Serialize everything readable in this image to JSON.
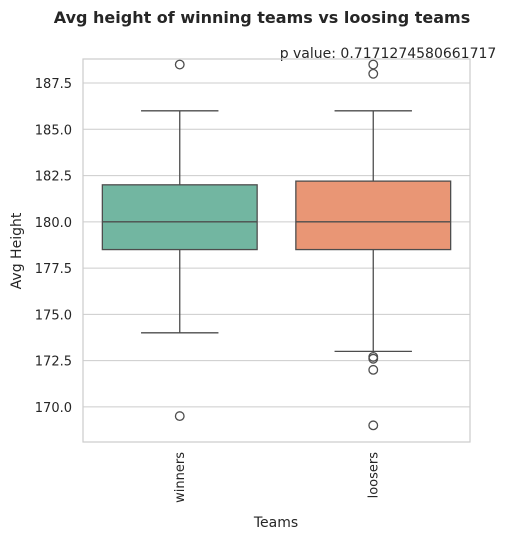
{
  "chart_data": {
    "type": "box",
    "title": "Avg height of winning teams vs loosing teams",
    "annotation": "p value: 0.7171274580661717",
    "xlabel": "Teams",
    "ylabel": "Avg Height",
    "ylim": [
      168.1,
      188.8
    ],
    "yticks": [
      {
        "value": 170.0,
        "label": "170.0"
      },
      {
        "value": 172.5,
        "label": "172.5"
      },
      {
        "value": 175.0,
        "label": "175.0"
      },
      {
        "value": 177.5,
        "label": "177.5"
      },
      {
        "value": 180.0,
        "label": "180.0"
      },
      {
        "value": 182.5,
        "label": "182.5"
      },
      {
        "value": 185.0,
        "label": "185.0"
      },
      {
        "value": 187.5,
        "label": "187.5"
      }
    ],
    "grid": true,
    "categories": [
      "winners",
      "loosers"
    ],
    "boxes": [
      {
        "category": "winners",
        "q1": 178.5,
        "median": 180.0,
        "q3": 182.0,
        "whisker_low": 174.0,
        "whisker_high": 186.0,
        "outliers": [
          188.5,
          169.5
        ],
        "color": "#72b6a1"
      },
      {
        "category": "loosers",
        "q1": 178.5,
        "median": 180.0,
        "q3": 182.2,
        "whisker_low": 173.0,
        "whisker_high": 186.0,
        "outliers": [
          188.5,
          188.0,
          172.7,
          172.6,
          172.0,
          169.0
        ],
        "color": "#e99675"
      }
    ]
  }
}
